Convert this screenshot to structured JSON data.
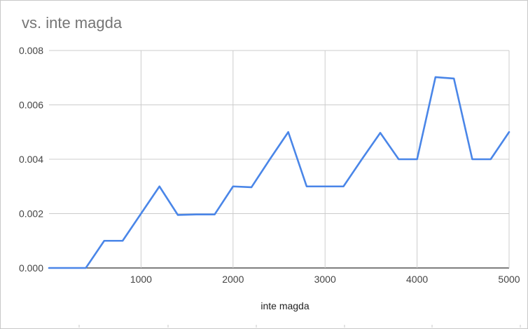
{
  "chart_data": {
    "type": "line",
    "title": "vs. inte magda",
    "xlabel": "inte magda",
    "ylabel": "",
    "xlim": [
      0,
      5000
    ],
    "ylim": [
      0,
      0.008
    ],
    "x_ticks": [
      "1000",
      "2000",
      "3000",
      "4000",
      "5000"
    ],
    "y_ticks": [
      "0.000",
      "0.002",
      "0.004",
      "0.006",
      "0.008"
    ],
    "grid": true,
    "legend": "none",
    "series": [
      {
        "color": "#4a86e8",
        "x": [
          0,
          200,
          400,
          600,
          800,
          1000,
          1200,
          1400,
          1600,
          1800,
          2000,
          2200,
          2400,
          2600,
          2800,
          3000,
          3200,
          3400,
          3600,
          3800,
          4000,
          4200,
          4400,
          4600,
          4800,
          5000
        ],
        "values": [
          0,
          0,
          0,
          0.001,
          0.001,
          0.002,
          0.003,
          0.00195,
          0.00197,
          0.00197,
          0.003,
          0.00297,
          0.004,
          0.005,
          0.003,
          0.003,
          0.003,
          0.004,
          0.00497,
          0.004,
          0.004,
          0.00702,
          0.00697,
          0.004,
          0.004,
          0.005
        ]
      }
    ]
  }
}
